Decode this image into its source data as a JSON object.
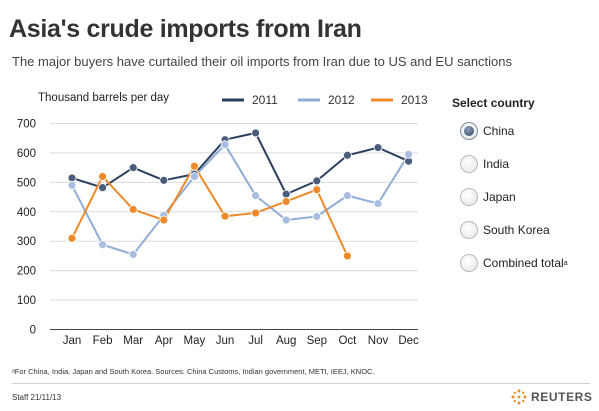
{
  "title": "Asia's crude imports from Iran",
  "subtitle": "The major buyers have curtailed their oil imports from Iran due to US and EU sanctions",
  "selector": {
    "title": "Select country",
    "options": [
      {
        "label": "China",
        "selected": true
      },
      {
        "label": "India",
        "selected": false
      },
      {
        "label": "Japan",
        "selected": false
      },
      {
        "label": "South Korea",
        "selected": false
      },
      {
        "label": "Combined total",
        "superscript": "a",
        "selected": false
      }
    ]
  },
  "footnote": "ᵃFor China, India, Japan and South Korea. Sources: China Customs, Indian government, METI, IEEJ, KNOC.",
  "staff": "Staff 21/11/13",
  "brand": "REUTERS",
  "chart_data": {
    "type": "line",
    "ylabel": "Thousand barrels per day",
    "ylim": [
      0,
      700
    ],
    "yticks": [
      0,
      100,
      200,
      300,
      400,
      500,
      600,
      700
    ],
    "grid": true,
    "legend_position": "top",
    "categories": [
      "Jan",
      "Feb",
      "Mar",
      "Apr",
      "May",
      "Jun",
      "Jul",
      "Aug",
      "Sep",
      "Oct",
      "Nov",
      "Dec"
    ],
    "series": [
      {
        "name": "2011",
        "color": "#2b3f5f",
        "marker": "#4a5d7c",
        "values": [
          515,
          482,
          550,
          507,
          528,
          645,
          668,
          460,
          505,
          592,
          618,
          572
        ]
      },
      {
        "name": "2012",
        "color": "#8fadd6",
        "marker": "#a9bde0",
        "values": [
          490,
          288,
          255,
          388,
          520,
          628,
          455,
          372,
          384,
          455,
          428,
          595
        ]
      },
      {
        "name": "2013",
        "color": "#ee8a2a",
        "marker": "#ee8a2a",
        "values": [
          310,
          520,
          408,
          372,
          555,
          385,
          396,
          435,
          475,
          250,
          null,
          null
        ]
      }
    ]
  }
}
